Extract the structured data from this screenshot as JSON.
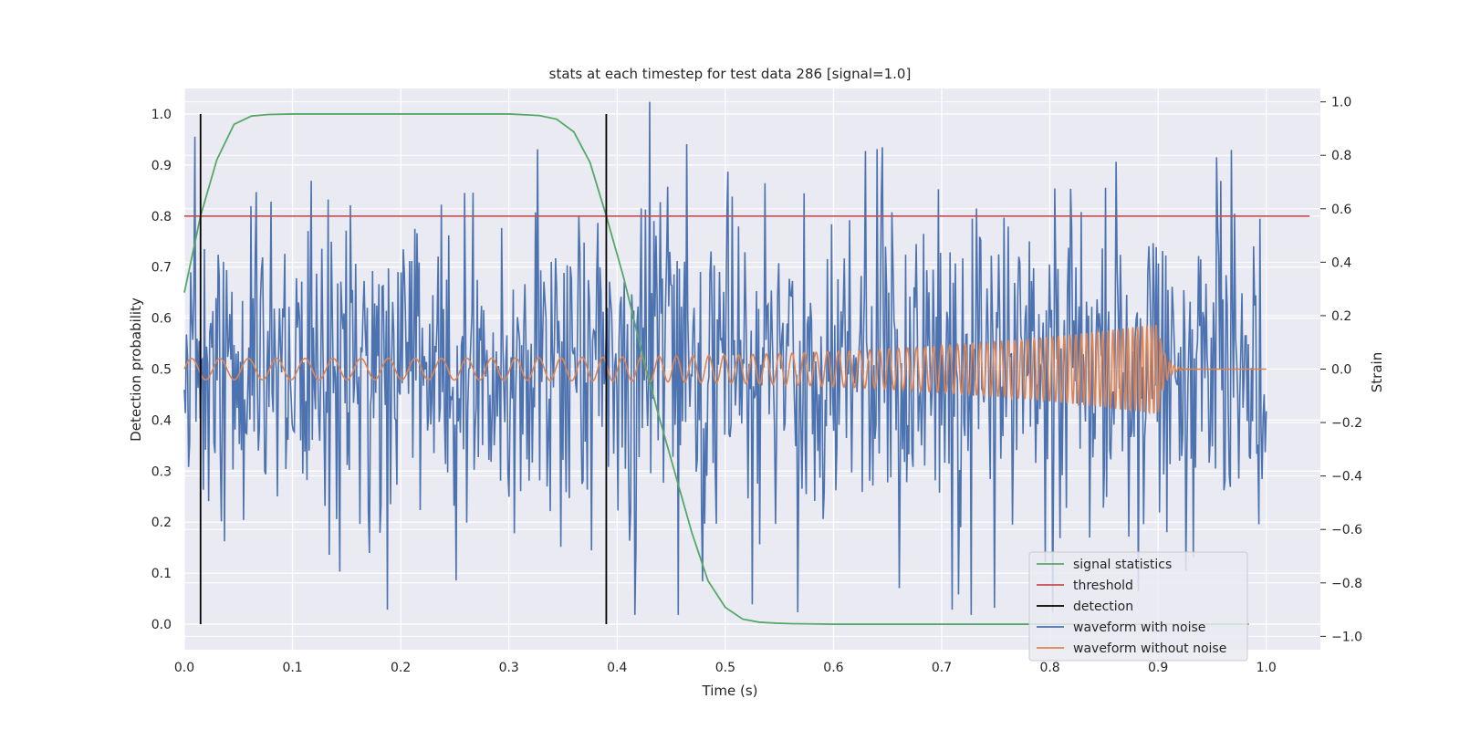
{
  "chart_data": {
    "type": "line",
    "title": "stats at each timestep for test data 286 [signal=1.0]",
    "xlabel": "Time (s)",
    "ylabel_left": "Detection probability",
    "ylabel_right": "Strain",
    "xlim": [
      0.0,
      1.05
    ],
    "ylim_left": [
      -0.05,
      1.05
    ],
    "ylim_right": [
      -1.05,
      1.05
    ],
    "xticks": [
      "0.0",
      "0.1",
      "0.2",
      "0.3",
      "0.4",
      "0.5",
      "0.6",
      "0.7",
      "0.8",
      "0.9",
      "1.0"
    ],
    "yticks_left": [
      "0.0",
      "0.1",
      "0.2",
      "0.3",
      "0.4",
      "0.5",
      "0.6",
      "0.7",
      "0.8",
      "0.9",
      "1.0"
    ],
    "yticks_right": [
      "−1.0",
      "−0.8",
      "−0.6",
      "−0.4",
      "−0.2",
      "0.0",
      "0.2",
      "0.4",
      "0.6",
      "0.8",
      "1.0"
    ],
    "grid": true,
    "legend_position": "lower-right",
    "colors": {
      "background": "#eaeaf2",
      "grid": "#ffffff",
      "signal_statistics": "#55a868",
      "threshold": "#c44e52",
      "detection": "#000000",
      "waveform_with_noise": "#4c72b0",
      "waveform_without_noise": "#dd8452"
    },
    "series": [
      {
        "name": "signal statistics",
        "axis": "left",
        "x": [
          0.0,
          0.015,
          0.03,
          0.046,
          0.062,
          0.078,
          0.1,
          0.15,
          0.2,
          0.25,
          0.3,
          0.328,
          0.344,
          0.36,
          0.375,
          0.39,
          0.406,
          0.422,
          0.437,
          0.453,
          0.469,
          0.484,
          0.5,
          0.516,
          0.531,
          0.547,
          0.562,
          0.6,
          0.7,
          0.8,
          0.9,
          0.984
        ],
        "y": [
          0.65,
          0.8,
          0.91,
          0.98,
          0.996,
          0.999,
          1.0,
          1.0,
          1.0,
          1.0,
          1.0,
          0.997,
          0.99,
          0.965,
          0.905,
          0.8,
          0.68,
          0.54,
          0.42,
          0.3,
          0.18,
          0.085,
          0.033,
          0.01,
          0.004,
          0.002,
          0.001,
          0.0,
          0.0,
          0.0,
          0.0,
          0.0
        ]
      },
      {
        "name": "threshold",
        "axis": "left",
        "x": [
          0.0,
          1.04
        ],
        "y": [
          0.8,
          0.8
        ]
      },
      {
        "name": "detection",
        "axis": "left",
        "segments": [
          {
            "x": 0.015,
            "y": [
              0.0,
              1.0
            ]
          },
          {
            "x": 0.39,
            "y": [
              0.0,
              1.0
            ]
          }
        ]
      },
      {
        "name": "waveform with noise",
        "axis": "right",
        "x_range": [
          0.0,
          1.0
        ],
        "y_range_approx": [
          -0.92,
          1.0
        ],
        "notable_points": [
          {
            "x": 0.01,
            "y": 0.87
          },
          {
            "x": 0.188,
            "y": -0.9
          },
          {
            "x": 0.43,
            "y": 1.0
          },
          {
            "x": 0.525,
            "y": -0.88
          },
          {
            "x": 0.567,
            "y": -0.91
          },
          {
            "x": 0.645,
            "y": 0.83
          },
          {
            "x": 0.71,
            "y": -0.9
          }
        ],
        "n_points": 1024
      },
      {
        "name": "waveform without noise",
        "axis": "right",
        "x_range": [
          0.0,
          1.0
        ],
        "description_values": {
          "amplitude_start": 0.04,
          "amplitude_peak": 0.17,
          "merger_time": 0.9,
          "freq_start_hz": 38,
          "freq_peak_hz": 240
        }
      }
    ]
  }
}
